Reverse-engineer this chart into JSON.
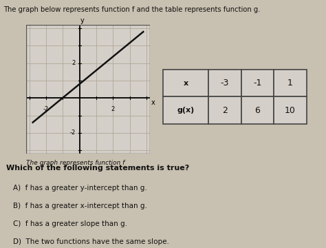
{
  "title": "The graph below represents function f and the table represents function g.",
  "graph_caption": "The graph represents function f",
  "question": "Which of the following statements is true?",
  "choices": [
    "A)  f has a greater y-intercept than g.",
    "B)  f has a greater x-intercept than g.",
    "C)  f has a greater slope than g.",
    "D)  The two functions have the same slope."
  ],
  "table_x": [
    "-3",
    "-1",
    "1"
  ],
  "table_gx": [
    "2",
    "6",
    "10"
  ],
  "line_x1": -2.8,
  "line_y1": -1.4,
  "line_x2": 3.8,
  "line_y2": 3.8,
  "xlim": [
    -3.2,
    4.2
  ],
  "ylim": [
    -3.2,
    4.2
  ],
  "bg_color": "#c8c0b0",
  "graph_bg": "#d4cfc8",
  "grid_color": "#b0a898",
  "line_color": "#111111",
  "table_bg": "#d4cfc8",
  "table_border": "#444444",
  "text_color": "#111111"
}
